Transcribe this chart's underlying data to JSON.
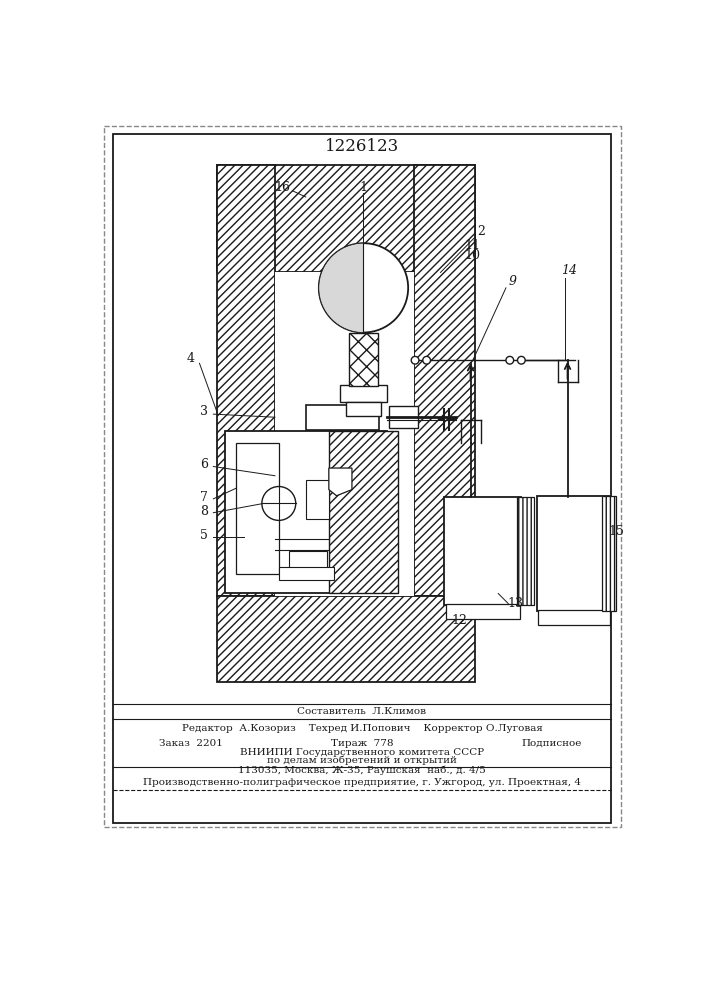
{
  "patent_number": "1226123",
  "bg": "#ffffff",
  "lc": "#1a1a1a",
  "figsize": [
    7.07,
    10.0
  ],
  "dpi": 100,
  "footer": {
    "line1": "Составитель  Л.Климов",
    "line2": "Редактор  А.Козориз    Техред И.Попович    Корректор О.Луговая",
    "line3a": "Заказ  2201",
    "line3b": "Тираж  778",
    "line3c": "Подписное",
    "line4": "ВНИИПИ Государственного комитета СССР",
    "line5": "по делам изобретений и открытий",
    "line6": "113035, Москва, Ж-35, Раушская  наб., д. 4/5",
    "line7": "Производственно-полиграфическое предприятие, г. Ужгород, ул. Проектная, 4"
  }
}
